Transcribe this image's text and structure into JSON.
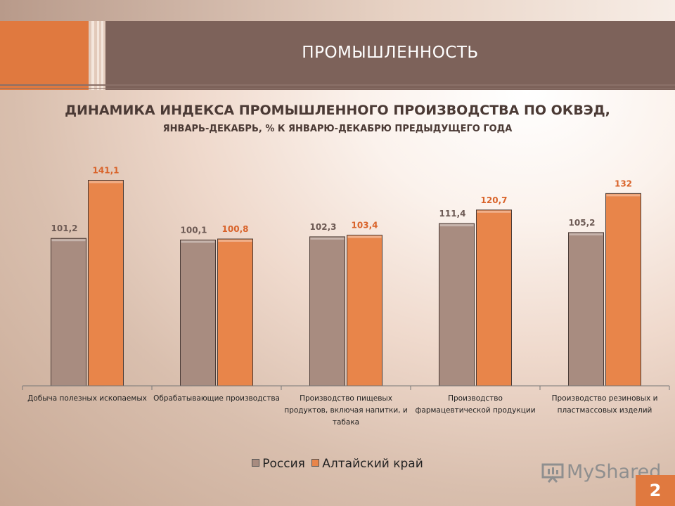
{
  "header": {
    "title": "ПРОМЫШЛЕННОСТЬ"
  },
  "chart_data": {
    "type": "bar",
    "title": "ДИНАМИКА ИНДЕКСА ПРОМЫШЛЕННОГО ПРОИЗВОДСТВА ПО ОКВЭД,",
    "subtitle": "ЯНВАРЬ-ДЕКАБРЬ, % К ЯНВАРЮ-ДЕКАБРЮ ПРЕДЫДУЩЕГО ГОДА",
    "categories": [
      [
        "Добыча полезных ископаемых"
      ],
      [
        "Обрабатывающие производства"
      ],
      [
        "Производство пищевых",
        "продуктов, включая напитки, и",
        "табака"
      ],
      [
        "Производство",
        "фармацевтической продукции"
      ],
      [
        "Производство резиновых и",
        "пластмассовых изделий"
      ]
    ],
    "series": [
      {
        "name": "Россия",
        "values": [
          101.2,
          100.1,
          102.3,
          111.4,
          105.2
        ],
        "labels": [
          "101,2",
          "100,1",
          "102,3",
          "111,4",
          "105,2"
        ],
        "color": "#a88c80"
      },
      {
        "name": "Алтайский край",
        "values": [
          141.1,
          100.8,
          103.4,
          120.7,
          132
        ],
        "labels": [
          "141,1",
          "100,8",
          "103,4",
          "120,7",
          "132"
        ],
        "color": "#e8854a"
      }
    ],
    "ylim": [
      0,
      150
    ],
    "grid": false,
    "legend_position": "bottom",
    "label_colors": {
      "Россия": "#6d5a54",
      "Алтайский край": "#d9632a"
    }
  },
  "logo": {
    "text": "MyShared"
  },
  "page_number": "2"
}
